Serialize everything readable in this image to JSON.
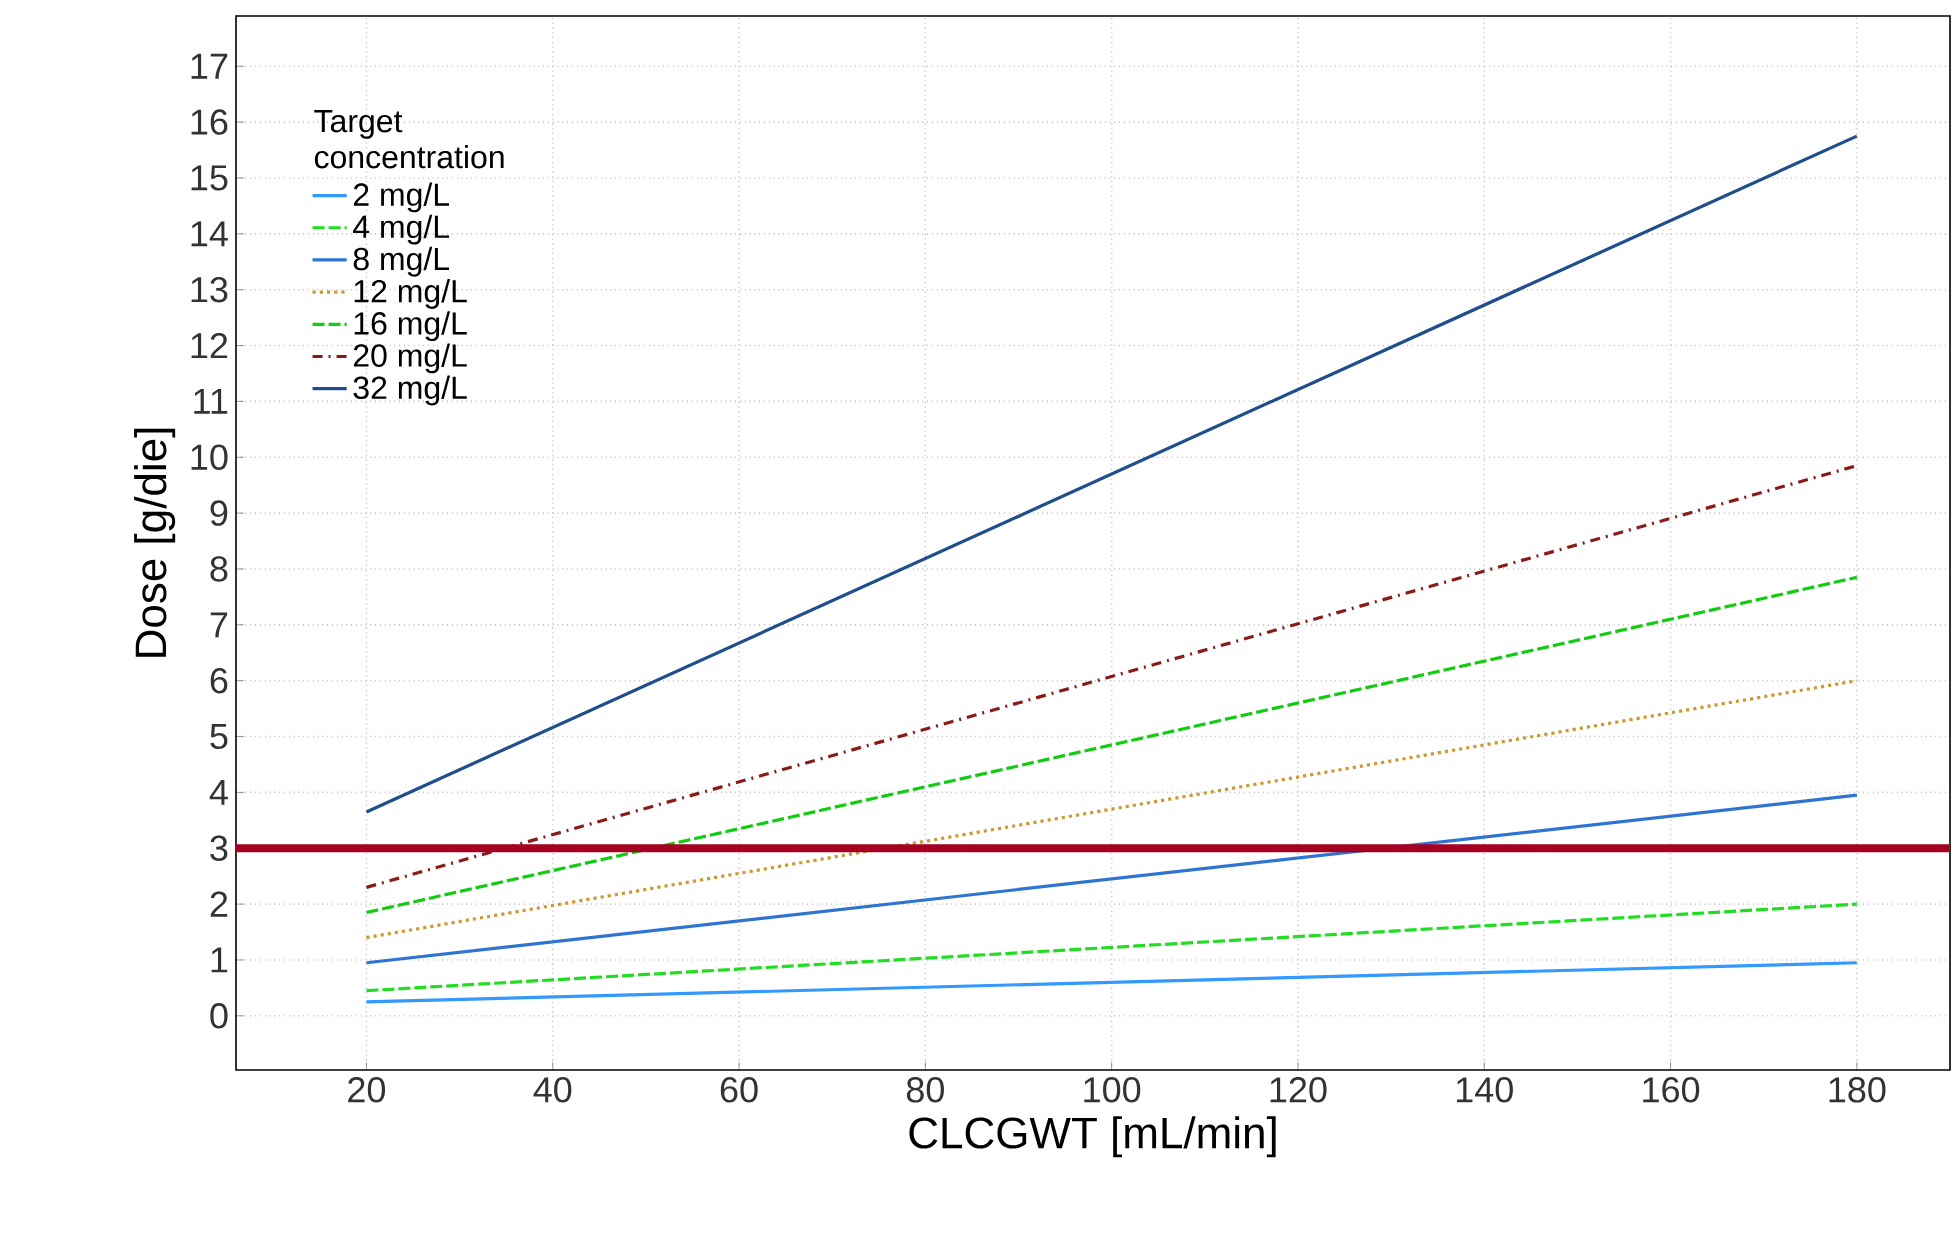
{
  "chart_data": {
    "type": "line",
    "xlabel": "CLCGWT [mL/min]",
    "ylabel": "Dose [g/die]",
    "legend_title": "Target concentration",
    "xlim": [
      6,
      190
    ],
    "ylim": [
      -0.97,
      17.9
    ],
    "xticks": [
      20,
      40,
      60,
      80,
      100,
      120,
      140,
      160,
      180
    ],
    "yticks": [
      0,
      1,
      2,
      3,
      4,
      5,
      6,
      7,
      8,
      9,
      10,
      11,
      12,
      13,
      14,
      15,
      16,
      17
    ],
    "x": [
      20,
      180
    ],
    "grid": true,
    "legend": "top left",
    "series": [
      {
        "name": "2 mg/L",
        "color": "#3399ff",
        "line_style": "solid",
        "values": [
          0.25,
          0.95
        ]
      },
      {
        "name": "4 mg/L",
        "color": "#22dd22",
        "line_style": "dashed",
        "values": [
          0.45,
          2.0
        ]
      },
      {
        "name": "8 mg/L",
        "color": "#2f74d0",
        "line_style": "solid",
        "values": [
          0.95,
          3.95
        ]
      },
      {
        "name": "12 mg/L",
        "color": "#cc9933",
        "line_style": "dotted",
        "values": [
          1.4,
          6.0
        ]
      },
      {
        "name": "16 mg/L",
        "color": "#11cc11",
        "line_style": "dashed",
        "values": [
          1.85,
          7.85
        ]
      },
      {
        "name": "20 mg/L",
        "color": "#8b1a1a",
        "line_style": "dashdot",
        "values": [
          2.3,
          9.85
        ]
      },
      {
        "name": "32 mg/L",
        "color": "#1f4e8c",
        "line_style": "solid",
        "values": [
          3.65,
          15.75
        ]
      }
    ],
    "ref_lines": [
      {
        "axis": "y",
        "value": 3,
        "color": "#a50021",
        "line_style": "solid"
      }
    ]
  }
}
